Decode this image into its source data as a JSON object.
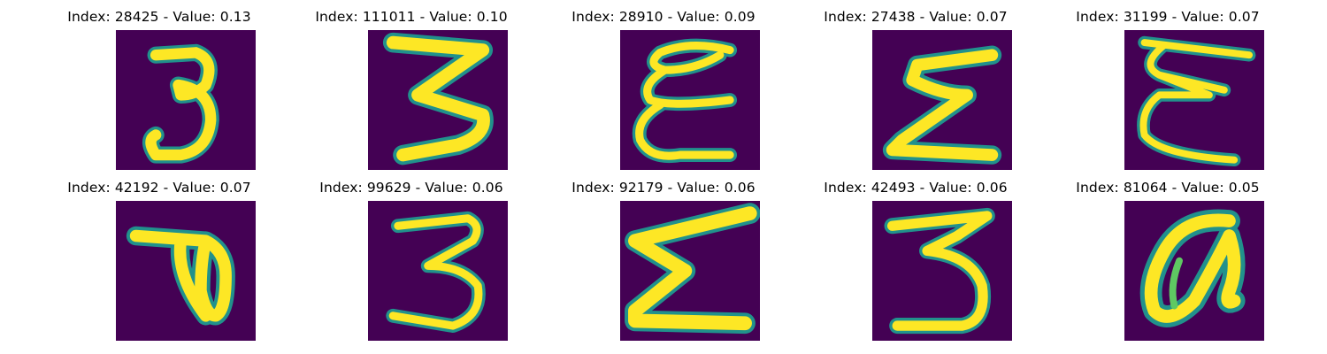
{
  "figure": {
    "colormap": [
      "#440154",
      "#21918c",
      "#5ec962",
      "#fde725"
    ],
    "panels": [
      {
        "title": "Index: 28425 - Value: 0.13",
        "glyph": "digit-3-icon"
      },
      {
        "title": "Index: 111011 - Value: 0.10",
        "glyph": "digit-3-wide-icon"
      },
      {
        "title": "Index: 28910 - Value: 0.09",
        "glyph": "epsilon-loopy-icon"
      },
      {
        "title": "Index: 27438 - Value: 0.07",
        "glyph": "epsilon-icon"
      },
      {
        "title": "Index: 31199 - Value: 0.07",
        "glyph": "epsilon-thin-icon"
      },
      {
        "title": "Index: 42192 - Value: 0.07",
        "glyph": "loop-hook-icon"
      },
      {
        "title": "Index: 99629 - Value: 0.06",
        "glyph": "digit-3-thin-icon"
      },
      {
        "title": "Index: 92179 - Value: 0.06",
        "glyph": "sigma-icon"
      },
      {
        "title": "Index: 42493 - Value: 0.06",
        "glyph": "digit-3-flat-icon"
      },
      {
        "title": "Index: 81064 - Value: 0.05",
        "glyph": "loop-zero-icon"
      }
    ]
  }
}
